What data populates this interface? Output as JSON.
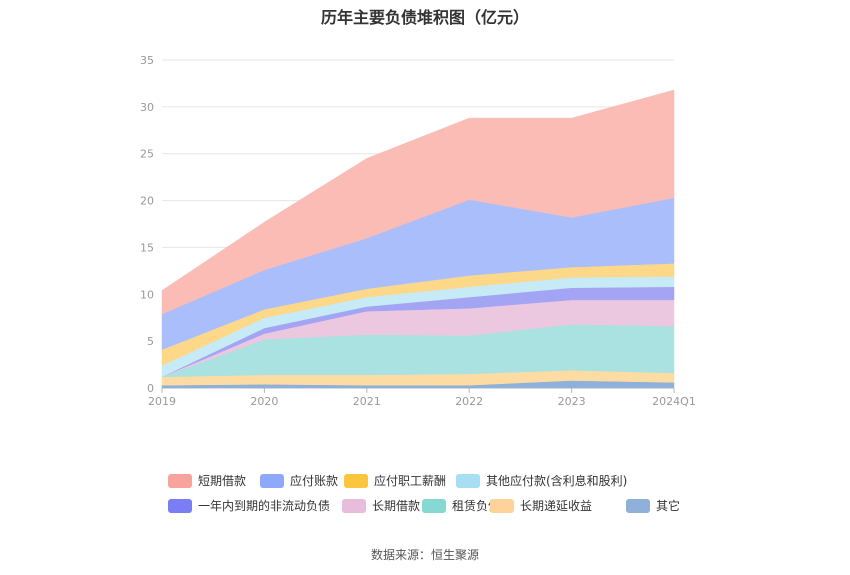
{
  "chart_data": {
    "type": "area",
    "title": "历年主要负债堆积图（亿元）",
    "categories": [
      "2019",
      "2020",
      "2021",
      "2022",
      "2023",
      "2024Q1"
    ],
    "ylim": [
      0,
      35
    ],
    "yticks": [
      0,
      5,
      10,
      15,
      20,
      25,
      30,
      35
    ],
    "stacked": true,
    "grid": true,
    "legend_position": "bottom",
    "series": [
      {
        "name": "其它",
        "color": "#8fb0d8",
        "values": [
          0.3,
          0.4,
          0.3,
          0.3,
          0.8,
          0.6
        ]
      },
      {
        "name": "长期递延收益",
        "color": "#fddca4",
        "values": [
          0.9,
          1.0,
          1.1,
          1.2,
          1.1,
          1.0
        ]
      },
      {
        "name": "租赁负债",
        "color": "#a9e2e0",
        "values": [
          0.0,
          3.8,
          4.3,
          4.1,
          4.9,
          5.0
        ]
      },
      {
        "name": "长期借款",
        "color": "#ecc8e0",
        "values": [
          0.0,
          0.6,
          2.5,
          2.9,
          2.6,
          2.8
        ]
      },
      {
        "name": "一年内到期的非流动负债",
        "color": "#a4a4f4",
        "values": [
          0.0,
          0.6,
          0.5,
          1.2,
          1.3,
          1.4
        ]
      },
      {
        "name": "其他应付款(含利息和股利)",
        "color": "#c6eaf6",
        "values": [
          1.2,
          1.1,
          1.0,
          1.1,
          1.1,
          1.1
        ]
      },
      {
        "name": "应付职工薪酬",
        "color": "#fdd889",
        "values": [
          1.7,
          0.9,
          0.9,
          1.2,
          1.1,
          1.4
        ]
      },
      {
        "name": "应付账款",
        "color": "#abbefc",
        "values": [
          3.8,
          4.2,
          5.4,
          8.1,
          5.3,
          7.0
        ]
      },
      {
        "name": "短期借款",
        "color": "#fcbcb6",
        "values": [
          2.5,
          5.1,
          8.5,
          8.7,
          10.6,
          11.5
        ]
      }
    ]
  },
  "legend": [
    {
      "label": "短期借款",
      "color": "#f8a39c"
    },
    {
      "label": "应付账款",
      "color": "#8ea8fb"
    },
    {
      "label": "应付职工薪酬",
      "color": "#fcc53e"
    },
    {
      "label": "其他应付款(含利息和股利)",
      "color": "#a7def3"
    },
    {
      "label": "一年内到期的非流动负债",
      "color": "#7b7df5"
    },
    {
      "label": "长期借款",
      "color": "#e8bddc"
    },
    {
      "label": "租赁负债",
      "color": "#86d8d3"
    },
    {
      "label": "长期递延收益",
      "color": "#fdd39a"
    },
    {
      "label": "其它",
      "color": "#8fb0d8"
    }
  ],
  "source": "数据来源：恒生聚源"
}
